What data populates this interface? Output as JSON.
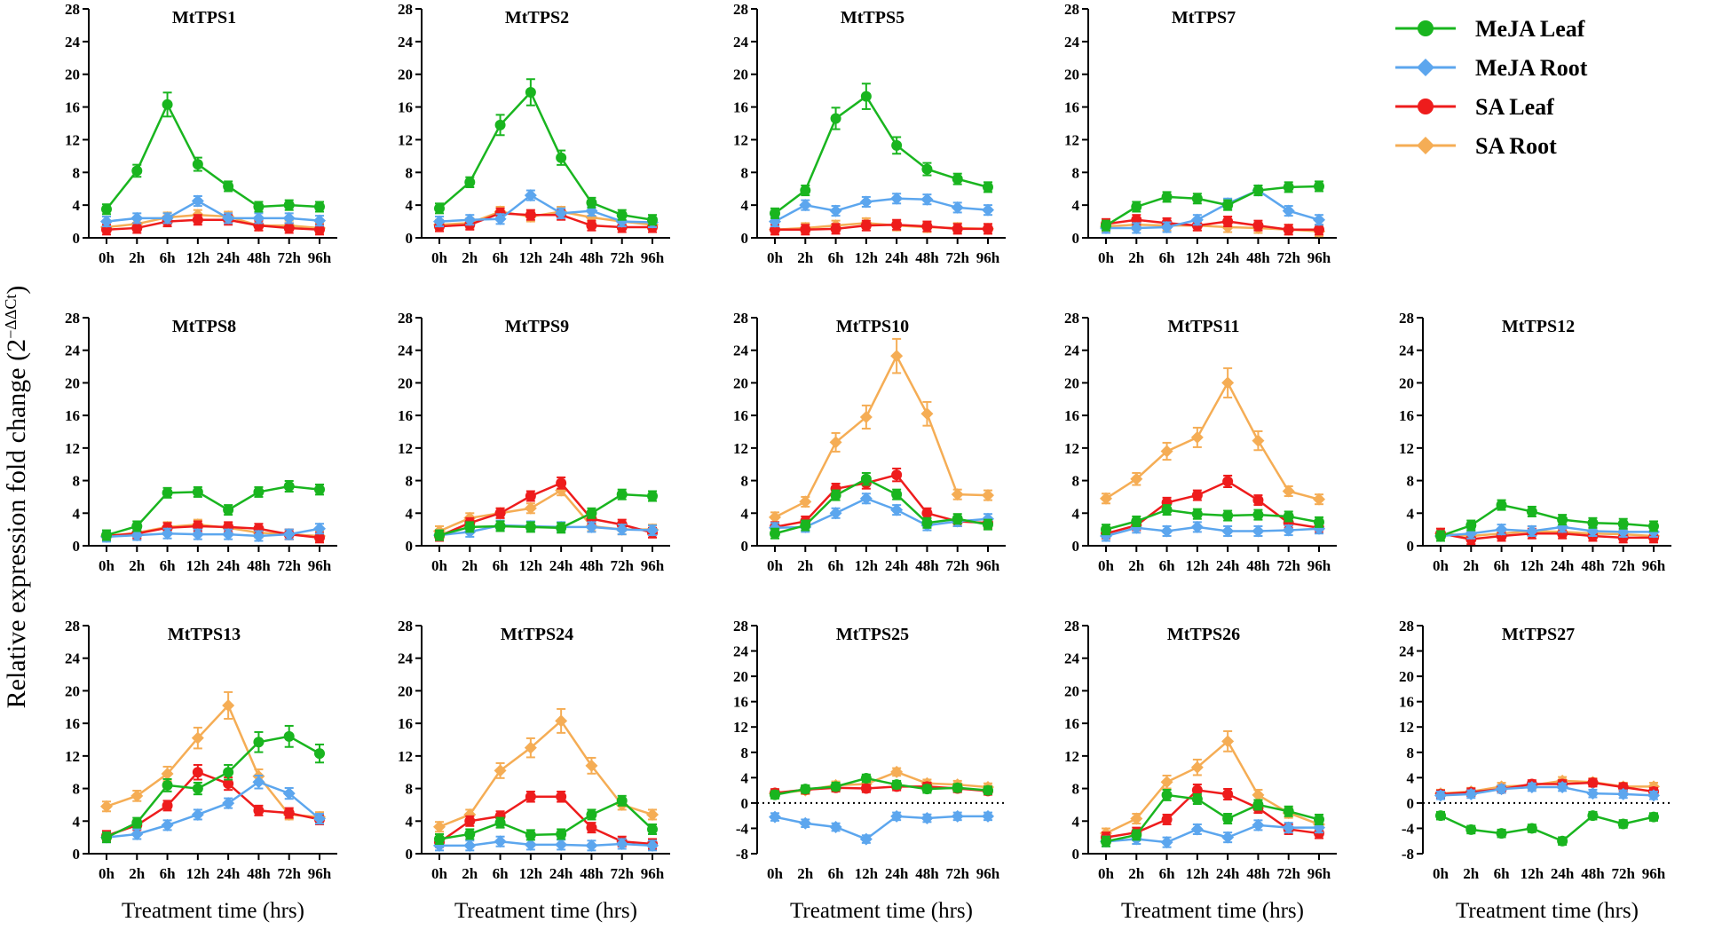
{
  "colors": {
    "MeJA Leaf": "#19b51f",
    "MeJA Root": "#5ca6ee",
    "SA Leaf": "#ee1c1c",
    "SA Root": "#f5ad55",
    "axis": "#000000"
  },
  "legend": {
    "entries": [
      {
        "label": "MeJA Leaf",
        "marker": "circle"
      },
      {
        "label": "MeJA Root",
        "marker": "diamond"
      },
      {
        "label": "SA Leaf",
        "marker": "circle"
      },
      {
        "label": "SA Root",
        "marker": "diamond"
      }
    ]
  },
  "ylabel": {
    "main": "Relative  expression  fold change (2",
    "sup": "−ΔΔCt",
    "close": ")"
  },
  "chart_data": [
    {
      "type": "line",
      "title": "MtTPS1",
      "categories": [
        "0h",
        "2h",
        "6h",
        "12h",
        "24h",
        "48h",
        "72h",
        "96h"
      ],
      "ylim": [
        0,
        28
      ],
      "yticks": [
        0,
        4,
        8,
        12,
        16,
        20,
        24,
        28
      ],
      "xlabel": "",
      "zero_line": false,
      "series": [
        {
          "name": "MeJA Leaf",
          "values": [
            3.5,
            8.2,
            16.3,
            9.0,
            6.3,
            3.8,
            4.0,
            3.8
          ]
        },
        {
          "name": "MeJA Root",
          "values": [
            2.0,
            2.4,
            2.4,
            4.5,
            2.4,
            2.4,
            2.4,
            2.1
          ]
        },
        {
          "name": "SA Leaf",
          "values": [
            1.0,
            1.2,
            2.0,
            2.2,
            2.2,
            1.5,
            1.2,
            1.0
          ]
        },
        {
          "name": "SA Root",
          "values": [
            1.3,
            1.7,
            2.5,
            2.8,
            2.6,
            1.5,
            1.5,
            1.2
          ]
        }
      ]
    },
    {
      "type": "line",
      "title": "MtTPS2",
      "categories": [
        "0h",
        "2h",
        "6h",
        "12h",
        "24h",
        "48h",
        "72h",
        "96h"
      ],
      "ylim": [
        0,
        28
      ],
      "yticks": [
        0,
        4,
        8,
        12,
        16,
        20,
        24,
        28
      ],
      "xlabel": "",
      "zero_line": false,
      "series": [
        {
          "name": "MeJA Leaf",
          "values": [
            3.6,
            6.8,
            13.8,
            17.8,
            9.8,
            4.3,
            2.8,
            2.2
          ]
        },
        {
          "name": "MeJA Root",
          "values": [
            2.0,
            2.2,
            2.3,
            5.2,
            3.0,
            3.3,
            2.0,
            1.9
          ]
        },
        {
          "name": "SA Leaf",
          "values": [
            1.4,
            1.6,
            3.0,
            2.8,
            2.8,
            1.5,
            1.3,
            1.3
          ]
        },
        {
          "name": "SA Root",
          "values": [
            1.6,
            1.8,
            3.2,
            2.6,
            3.2,
            2.5,
            2.0,
            1.6
          ]
        }
      ]
    },
    {
      "type": "line",
      "title": "MtTPS5",
      "categories": [
        "0h",
        "2h",
        "6h",
        "12h",
        "24h",
        "48h",
        "72h",
        "96h"
      ],
      "ylim": [
        0,
        28
      ],
      "yticks": [
        0,
        4,
        8,
        12,
        16,
        20,
        24,
        28
      ],
      "xlabel": "",
      "zero_line": false,
      "series": [
        {
          "name": "MeJA Leaf",
          "values": [
            3.0,
            5.8,
            14.6,
            17.3,
            11.3,
            8.4,
            7.2,
            6.2
          ]
        },
        {
          "name": "MeJA Root",
          "values": [
            2.0,
            4.0,
            3.3,
            4.4,
            4.8,
            4.7,
            3.7,
            3.4
          ]
        },
        {
          "name": "SA Leaf",
          "values": [
            1.0,
            1.0,
            1.1,
            1.5,
            1.6,
            1.4,
            1.1,
            1.1
          ]
        },
        {
          "name": "SA Root",
          "values": [
            1.0,
            1.2,
            1.5,
            1.8,
            1.5,
            1.3,
            1.2,
            1.1
          ]
        }
      ]
    },
    {
      "type": "line",
      "title": "MtTPS7",
      "categories": [
        "0h",
        "2h",
        "6h",
        "12h",
        "24h",
        "48h",
        "72h",
        "96h"
      ],
      "ylim": [
        0,
        28
      ],
      "yticks": [
        0,
        4,
        8,
        12,
        16,
        20,
        24,
        28
      ],
      "xlabel": "",
      "zero_line": false,
      "series": [
        {
          "name": "MeJA Leaf",
          "values": [
            1.5,
            3.8,
            5.0,
            4.8,
            4.0,
            5.8,
            6.2,
            6.3
          ]
        },
        {
          "name": "MeJA Root",
          "values": [
            1.2,
            1.2,
            1.3,
            2.2,
            4.2,
            5.8,
            3.3,
            2.2
          ]
        },
        {
          "name": "SA Leaf",
          "values": [
            1.7,
            2.2,
            1.8,
            1.5,
            2.0,
            1.5,
            1.0,
            1.0
          ]
        },
        {
          "name": "SA Root",
          "values": [
            1.4,
            1.6,
            1.5,
            1.5,
            1.3,
            1.2,
            1.0,
            0.8
          ]
        }
      ]
    },
    {
      "type": "line",
      "title": "MtTPS8",
      "categories": [
        "0h",
        "2h",
        "6h",
        "12h",
        "24h",
        "48h",
        "72h",
        "96h"
      ],
      "ylim": [
        0,
        28
      ],
      "yticks": [
        0,
        4,
        8,
        12,
        16,
        20,
        24,
        28
      ],
      "xlabel": "",
      "zero_line": false,
      "series": [
        {
          "name": "MeJA Leaf",
          "values": [
            1.3,
            2.4,
            6.5,
            6.6,
            4.4,
            6.6,
            7.3,
            6.9
          ]
        },
        {
          "name": "MeJA Root",
          "values": [
            1.1,
            1.3,
            1.5,
            1.4,
            1.4,
            1.2,
            1.4,
            2.1
          ]
        },
        {
          "name": "SA Leaf",
          "values": [
            1.2,
            1.5,
            2.2,
            2.4,
            2.3,
            2.1,
            1.4,
            1.0
          ]
        },
        {
          "name": "SA Root",
          "values": [
            1.2,
            1.6,
            2.3,
            2.6,
            2.2,
            1.6,
            1.4,
            1.2
          ]
        }
      ]
    },
    {
      "type": "line",
      "title": "MtTPS9",
      "categories": [
        "0h",
        "2h",
        "6h",
        "12h",
        "24h",
        "48h",
        "72h",
        "96h"
      ],
      "ylim": [
        0,
        28
      ],
      "yticks": [
        0,
        4,
        8,
        12,
        16,
        20,
        24,
        28
      ],
      "xlabel": "",
      "zero_line": false,
      "series": [
        {
          "name": "MeJA Leaf",
          "values": [
            1.3,
            2.3,
            2.4,
            2.3,
            2.2,
            4.0,
            6.3,
            6.1
          ]
        },
        {
          "name": "MeJA Root",
          "values": [
            1.3,
            1.7,
            2.5,
            2.4,
            2.3,
            2.3,
            2.0,
            1.9
          ]
        },
        {
          "name": "SA Leaf",
          "values": [
            1.2,
            2.8,
            4.0,
            6.1,
            7.7,
            3.3,
            2.6,
            1.6
          ]
        },
        {
          "name": "SA Root",
          "values": [
            1.8,
            3.4,
            4.0,
            4.6,
            6.8,
            2.4,
            2.0,
            2.0
          ]
        }
      ]
    },
    {
      "type": "line",
      "title": "MtTPS10",
      "categories": [
        "0h",
        "2h",
        "6h",
        "12h",
        "24h",
        "48h",
        "72h",
        "96h"
      ],
      "ylim": [
        0,
        28
      ],
      "yticks": [
        0,
        4,
        8,
        12,
        16,
        20,
        24,
        28
      ],
      "xlabel": "",
      "zero_line": false,
      "series": [
        {
          "name": "MeJA Leaf",
          "values": [
            1.5,
            2.5,
            6.2,
            8.2,
            6.3,
            2.8,
            3.3,
            2.6
          ]
        },
        {
          "name": "MeJA Root",
          "values": [
            2.2,
            2.3,
            4.0,
            5.8,
            4.4,
            2.5,
            3.0,
            3.3
          ]
        },
        {
          "name": "SA Leaf",
          "values": [
            2.3,
            3.0,
            7.0,
            7.7,
            8.7,
            4.0,
            3.0,
            2.8
          ]
        },
        {
          "name": "SA Root",
          "values": [
            3.5,
            5.4,
            12.7,
            15.8,
            23.3,
            16.2,
            6.3,
            6.2
          ]
        }
      ]
    },
    {
      "type": "line",
      "title": "MtTPS11",
      "categories": [
        "0h",
        "2h",
        "6h",
        "12h",
        "24h",
        "48h",
        "72h",
        "96h"
      ],
      "ylim": [
        0,
        28
      ],
      "yticks": [
        0,
        4,
        8,
        12,
        16,
        20,
        24,
        28
      ],
      "xlabel": "",
      "zero_line": false,
      "series": [
        {
          "name": "MeJA Leaf",
          "values": [
            2.0,
            3.0,
            4.4,
            3.9,
            3.7,
            3.8,
            3.6,
            2.9
          ]
        },
        {
          "name": "MeJA Root",
          "values": [
            1.2,
            2.2,
            1.8,
            2.3,
            1.8,
            1.8,
            1.9,
            2.1
          ]
        },
        {
          "name": "SA Leaf",
          "values": [
            1.5,
            2.5,
            5.3,
            6.2,
            7.9,
            5.6,
            2.8,
            2.2
          ]
        },
        {
          "name": "SA Root",
          "values": [
            5.8,
            8.2,
            11.6,
            13.3,
            20.0,
            12.9,
            6.7,
            5.7
          ]
        }
      ]
    },
    {
      "type": "line",
      "title": "MtTPS12",
      "categories": [
        "0h",
        "2h",
        "6h",
        "12h",
        "24h",
        "48h",
        "72h",
        "96h"
      ],
      "ylim": [
        0,
        28
      ],
      "yticks": [
        0,
        4,
        8,
        12,
        16,
        20,
        24,
        28
      ],
      "xlabel": "",
      "zero_line": false,
      "series": [
        {
          "name": "MeJA Leaf",
          "values": [
            1.2,
            2.5,
            5.0,
            4.2,
            3.2,
            2.8,
            2.7,
            2.4
          ]
        },
        {
          "name": "MeJA Root",
          "values": [
            1.2,
            1.5,
            2.0,
            1.8,
            2.3,
            1.8,
            1.7,
            1.7
          ]
        },
        {
          "name": "SA Leaf",
          "values": [
            1.5,
            0.8,
            1.2,
            1.5,
            1.5,
            1.2,
            1.0,
            1.0
          ]
        },
        {
          "name": "SA Root",
          "values": [
            1.5,
            1.2,
            1.5,
            1.8,
            1.7,
            1.5,
            1.4,
            1.2
          ]
        }
      ]
    },
    {
      "type": "line",
      "title": "MtTPS13",
      "categories": [
        "0h",
        "2h",
        "6h",
        "12h",
        "24h",
        "48h",
        "72h",
        "96h"
      ],
      "ylim": [
        0,
        28
      ],
      "yticks": [
        0,
        4,
        8,
        12,
        16,
        20,
        24,
        28
      ],
      "xlabel": "Treatment time (hrs)",
      "zero_line": false,
      "series": [
        {
          "name": "MeJA Leaf",
          "values": [
            2.0,
            3.8,
            8.4,
            8.0,
            10.0,
            13.7,
            14.4,
            12.3
          ]
        },
        {
          "name": "MeJA Root",
          "values": [
            2.0,
            2.4,
            3.5,
            4.8,
            6.2,
            8.8,
            7.4,
            4.3
          ]
        },
        {
          "name": "SA Leaf",
          "values": [
            2.2,
            3.5,
            5.9,
            10.0,
            8.6,
            5.3,
            5.0,
            4.2
          ]
        },
        {
          "name": "SA Root",
          "values": [
            5.8,
            7.1,
            9.8,
            14.2,
            18.2,
            9.5,
            4.8,
            4.5
          ]
        }
      ]
    },
    {
      "type": "line",
      "title": "MtTPS24",
      "categories": [
        "0h",
        "2h",
        "6h",
        "12h",
        "24h",
        "48h",
        "72h",
        "96h"
      ],
      "ylim": [
        0,
        28
      ],
      "yticks": [
        0,
        4,
        8,
        12,
        16,
        20,
        24,
        28
      ],
      "xlabel": "Treatment time (hrs)",
      "zero_line": false,
      "series": [
        {
          "name": "MeJA Leaf",
          "values": [
            1.8,
            2.4,
            3.8,
            2.3,
            2.4,
            4.8,
            6.5,
            3.0
          ]
        },
        {
          "name": "MeJA Root",
          "values": [
            1.0,
            1.0,
            1.5,
            1.1,
            1.1,
            1.0,
            1.2,
            1.0
          ]
        },
        {
          "name": "SA Leaf",
          "values": [
            1.4,
            4.0,
            4.6,
            7.0,
            7.0,
            3.2,
            1.5,
            1.2
          ]
        },
        {
          "name": "SA Root",
          "values": [
            3.3,
            4.8,
            10.2,
            13.0,
            16.3,
            10.8,
            6.0,
            4.8
          ]
        }
      ]
    },
    {
      "type": "line",
      "title": "MtTPS25",
      "categories": [
        "0h",
        "2h",
        "6h",
        "12h",
        "24h",
        "48h",
        "72h",
        "96h"
      ],
      "ylim": [
        -8,
        28
      ],
      "yticks": [
        -8,
        -4,
        0,
        4,
        8,
        12,
        16,
        20,
        24,
        28
      ],
      "xlabel": "Treatment time (hrs)",
      "zero_line": true,
      "series": [
        {
          "name": "MeJA Leaf",
          "values": [
            1.3,
            2.2,
            2.6,
            3.9,
            2.9,
            2.2,
            2.4,
            2.0
          ]
        },
        {
          "name": "MeJA Root",
          "values": [
            -2.2,
            -3.2,
            -3.8,
            -5.7,
            -2.1,
            -2.4,
            -2.1,
            -2.1
          ]
        },
        {
          "name": "SA Leaf",
          "values": [
            1.6,
            2.1,
            2.4,
            2.3,
            2.6,
            2.6,
            2.3,
            1.9
          ]
        },
        {
          "name": "SA Root",
          "values": [
            1.5,
            2.0,
            2.8,
            3.0,
            4.9,
            3.1,
            2.9,
            2.5
          ]
        }
      ]
    },
    {
      "type": "line",
      "title": "MtTPS26",
      "categories": [
        "0h",
        "2h",
        "6h",
        "12h",
        "24h",
        "48h",
        "72h",
        "96h"
      ],
      "ylim": [
        0,
        28
      ],
      "yticks": [
        0,
        4,
        8,
        12,
        16,
        20,
        24,
        28
      ],
      "xlabel": "Treatment time (hrs)",
      "zero_line": false,
      "series": [
        {
          "name": "MeJA Leaf",
          "values": [
            1.5,
            2.3,
            7.2,
            6.7,
            4.3,
            6.0,
            5.2,
            4.2
          ]
        },
        {
          "name": "MeJA Root",
          "values": [
            1.5,
            1.8,
            1.4,
            3.0,
            2.0,
            3.5,
            3.2,
            3.2
          ]
        },
        {
          "name": "SA Leaf",
          "values": [
            2.0,
            2.6,
            4.2,
            7.8,
            7.3,
            5.6,
            3.0,
            2.5
          ]
        },
        {
          "name": "SA Root",
          "values": [
            2.5,
            4.3,
            8.8,
            10.6,
            13.8,
            7.2,
            5.0,
            3.6
          ]
        }
      ]
    },
    {
      "type": "line",
      "title": "MtTPS27",
      "categories": [
        "0h",
        "2h",
        "6h",
        "12h",
        "24h",
        "48h",
        "72h",
        "96h"
      ],
      "ylim": [
        -8,
        28
      ],
      "yticks": [
        -8,
        -4,
        0,
        4,
        8,
        12,
        16,
        20,
        24,
        28
      ],
      "xlabel": "Treatment time (hrs)",
      "zero_line": true,
      "series": [
        {
          "name": "MeJA Leaf",
          "values": [
            -2.0,
            -4.2,
            -4.8,
            -4.0,
            -6.0,
            -2.0,
            -3.3,
            -2.2
          ]
        },
        {
          "name": "MeJA Root",
          "values": [
            1.2,
            1.4,
            2.2,
            2.5,
            2.5,
            1.5,
            1.4,
            1.2
          ]
        },
        {
          "name": "SA Leaf",
          "values": [
            1.4,
            1.7,
            2.2,
            3.0,
            3.0,
            3.2,
            2.5,
            1.8
          ]
        },
        {
          "name": "SA Root",
          "values": [
            1.5,
            1.8,
            2.6,
            2.8,
            3.5,
            3.3,
            2.6,
            2.6
          ]
        }
      ]
    }
  ]
}
